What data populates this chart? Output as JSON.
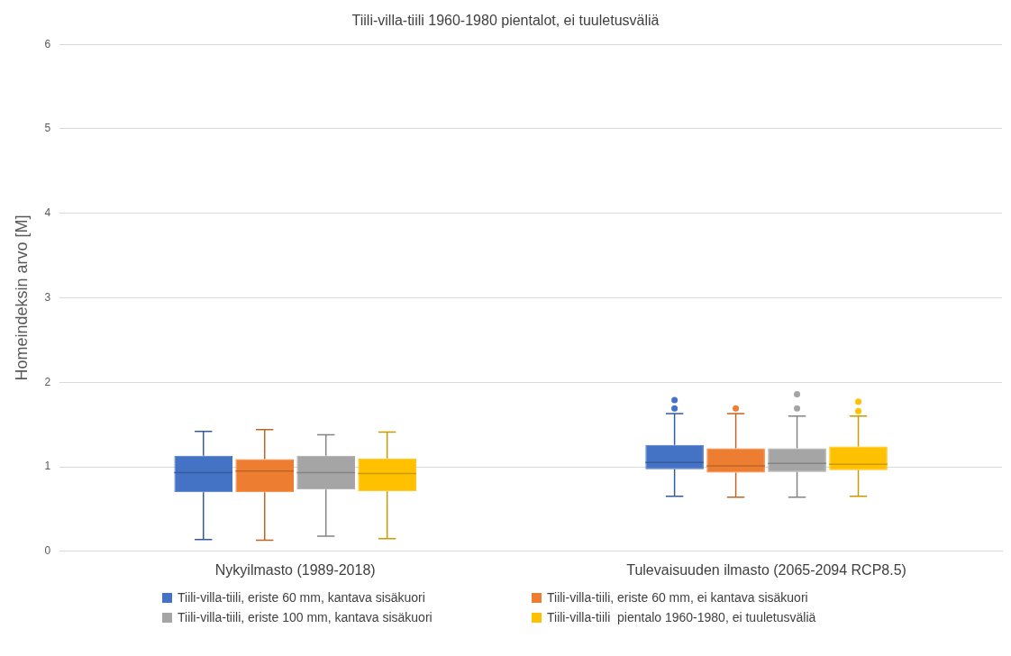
{
  "chart_data": {
    "type": "box",
    "title": "Tiili-villa-tiili 1960-1980 pientalot, ei tuuletusväliä",
    "ylabel": "Homeindeksin arvo [M]",
    "categories": [
      "Nykyilmasto (1989-2018)",
      "Tulevaisuuden ilmasto (2065-2094 RCP8.5)"
    ],
    "ylim": [
      0,
      6
    ],
    "yticks": [
      0,
      1,
      2,
      3,
      4,
      5,
      6
    ],
    "grid": "y",
    "legend": "bottom",
    "series": [
      {
        "name": "Tiili-villa-tiili, eriste 60 mm, kantava sisäkuori",
        "color": "#4472c4",
        "boxes": [
          {
            "low": 0.14,
            "q1": 0.7,
            "median": 0.93,
            "q3": 1.13,
            "high": 1.42
          },
          {
            "low": 0.65,
            "q1": 0.97,
            "median": 1.05,
            "q3": 1.26,
            "high": 1.63,
            "outliers": [
              1.69,
              1.79
            ]
          }
        ]
      },
      {
        "name": "Tiili-villa-tiili, eriste 60 mm, ei kantava sisäkuori",
        "color": "#ed7d31",
        "boxes": [
          {
            "low": 0.13,
            "q1": 0.7,
            "median": 0.95,
            "q3": 1.09,
            "high": 1.44
          },
          {
            "low": 0.64,
            "q1": 0.93,
            "median": 1.01,
            "q3": 1.22,
            "high": 1.63,
            "outliers": [
              1.69
            ]
          }
        ]
      },
      {
        "name": "Tiili-villa-tiili, eriste 100 mm, kantava sisäkuori",
        "color": "#a5a5a5",
        "boxes": [
          {
            "low": 0.18,
            "q1": 0.73,
            "median": 0.93,
            "q3": 1.13,
            "high": 1.38
          },
          {
            "low": 0.64,
            "q1": 0.94,
            "median": 1.04,
            "q3": 1.22,
            "high": 1.6,
            "outliers": [
              1.69,
              1.86
            ]
          }
        ]
      },
      {
        "name": "Tiili-villa-tiili  pientalo 1960-1980, ei tuuletusväliä",
        "color": "#ffc000",
        "boxes": [
          {
            "low": 0.15,
            "q1": 0.71,
            "median": 0.92,
            "q3": 1.1,
            "high": 1.41
          },
          {
            "low": 0.65,
            "q1": 0.96,
            "median": 1.03,
            "q3": 1.24,
            "high": 1.6,
            "outliers": [
              1.66,
              1.77
            ]
          }
        ]
      }
    ]
  }
}
